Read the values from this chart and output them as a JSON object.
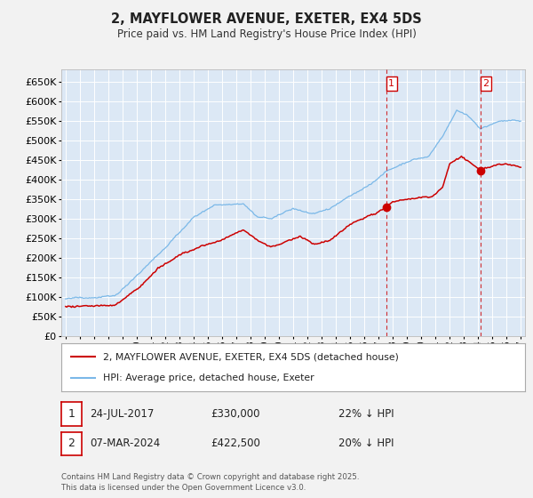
{
  "title": "2, MAYFLOWER AVENUE, EXETER, EX4 5DS",
  "subtitle": "Price paid vs. HM Land Registry's House Price Index (HPI)",
  "legend_line1": "2, MAYFLOWER AVENUE, EXETER, EX4 5DS (detached house)",
  "legend_line2": "HPI: Average price, detached house, Exeter",
  "annotation1": {
    "label": "1",
    "date": "24-JUL-2017",
    "price": "£330,000",
    "hpi_diff": "22% ↓ HPI"
  },
  "annotation2": {
    "label": "2",
    "date": "07-MAR-2024",
    "price": "£422,500",
    "hpi_diff": "20% ↓ HPI"
  },
  "footer": "Contains HM Land Registry data © Crown copyright and database right 2025.\nThis data is licensed under the Open Government Licence v3.0.",
  "hpi_color": "#7ab8e8",
  "price_paid_color": "#cc0000",
  "background_color": "#dce8f5",
  "fig_background": "#f2f2f2",
  "ylim": [
    0,
    680000
  ],
  "ytick_step": 50000,
  "x_start_year": 1995,
  "x_end_year": 2027,
  "vline1_year": 2017.55,
  "vline2_year": 2024.18,
  "marker1_price": 330000,
  "marker2_price": 422500
}
